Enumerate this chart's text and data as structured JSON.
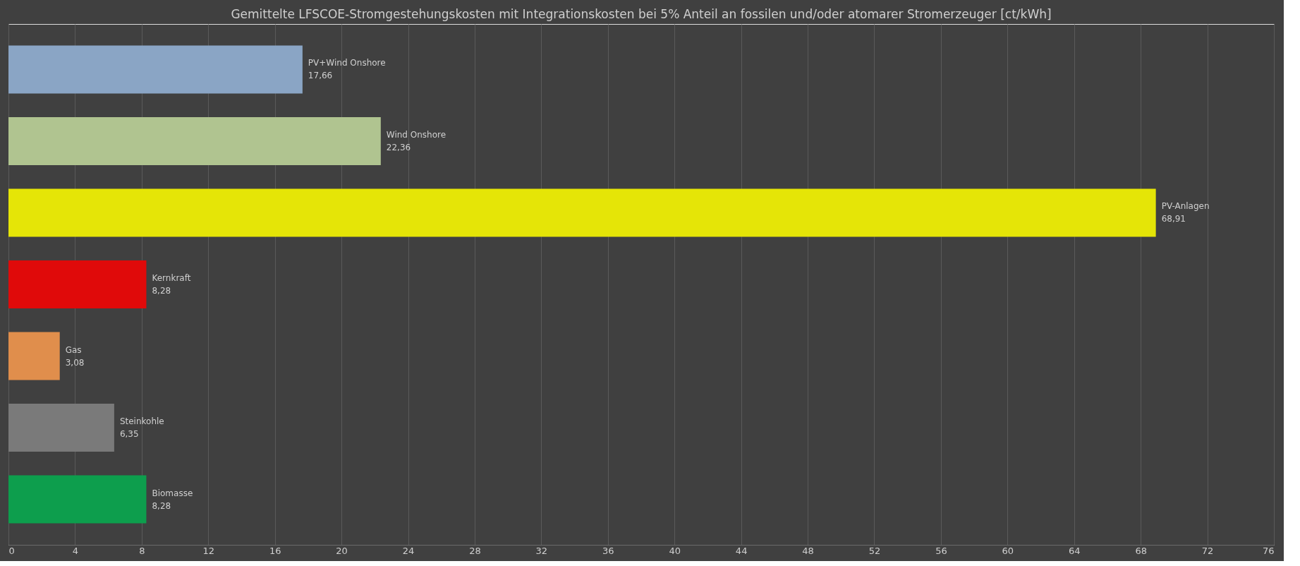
{
  "chart_data": {
    "type": "bar",
    "orientation": "horizontal",
    "title": "Gemittelte LFSCOE-Stromgestehungskosten  mit Integrationskosten  bei 5% Anteil an fossilen und/oder atomarer Stromerzeuger [ct/kWh]",
    "categories": [
      "PV+Wind Onshore",
      "Wind Onshore",
      "PV-Anlagen",
      "Kernkraft",
      "Gas",
      "Steinkohle",
      "Biomasse"
    ],
    "values": [
      17.66,
      22.36,
      68.91,
      8.28,
      3.08,
      6.35,
      8.28
    ],
    "value_labels": [
      "17,66",
      "22,36",
      "68,91",
      "8,28",
      "3,08",
      "6,35",
      "8,28"
    ],
    "colors": [
      "#8aa5c5",
      "#b0c490",
      "#e5e507",
      "#e00a0a",
      "#e08e4c",
      "#7a7a7a",
      "#0d9e4d"
    ],
    "xlim": [
      0,
      76
    ],
    "xticks": [
      0,
      4,
      8,
      12,
      16,
      20,
      24,
      28,
      32,
      36,
      40,
      44,
      48,
      52,
      56,
      60,
      64,
      68,
      72,
      76
    ],
    "grid": "x",
    "tick_labels": "x"
  }
}
